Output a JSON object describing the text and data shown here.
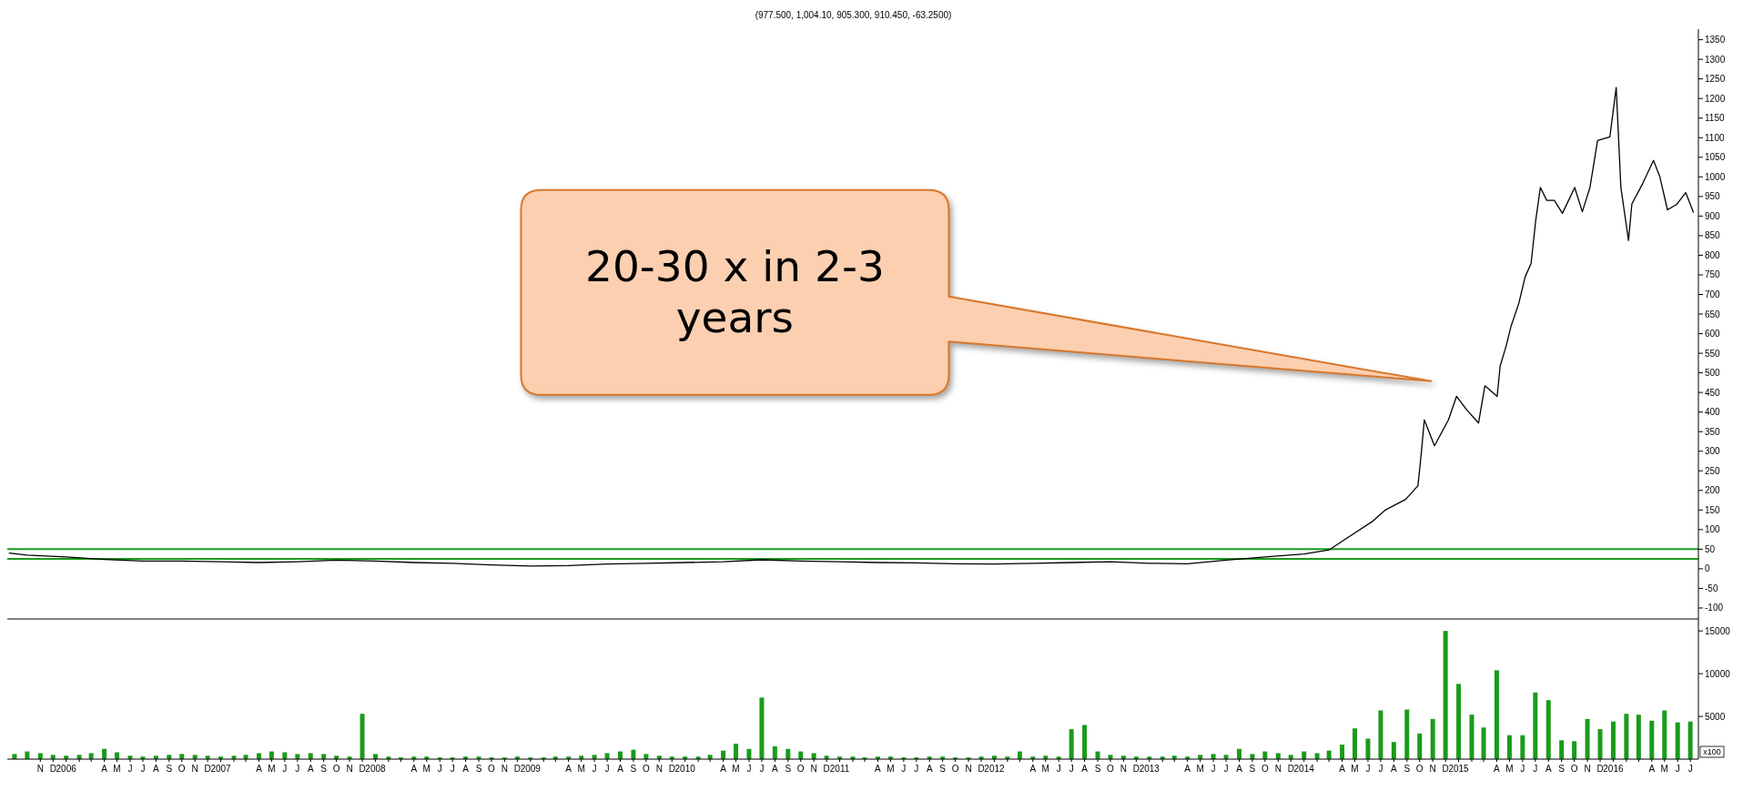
{
  "chart_data": [
    {
      "type": "line",
      "title": "(977.500, 1,004.10, 905.300, 910.450, -63.2500)",
      "tick_labels": "y",
      "xlim": [
        "2005-08-15",
        "2016-07-20"
      ],
      "ylim": [
        -128,
        1377
      ],
      "yticks": [
        -100,
        -50,
        0,
        50,
        100,
        150,
        200,
        250,
        300,
        350,
        400,
        450,
        500,
        550,
        600,
        650,
        700,
        750,
        800,
        850,
        900,
        950,
        1000,
        1050,
        1100,
        1150,
        1200,
        1250,
        1300,
        1350
      ],
      "ref_lines": [
        {
          "axis": "y",
          "value": 50,
          "color": "#1a9b1a"
        },
        {
          "axis": "y",
          "value": 25,
          "color": "#1a9b1a"
        }
      ],
      "annotations": [
        "20-30 x in 2-3 years"
      ],
      "series": [
        {
          "color": "#000000",
          "x": [
            "2005-08-20",
            "2005-10",
            "2006-01",
            "2006-04",
            "2006-07",
            "2006-10",
            "2007-01",
            "2007-04",
            "2007-07",
            "2007-10",
            "2008-01",
            "2008-04",
            "2008-07",
            "2008-10",
            "2009-01",
            "2009-04",
            "2009-07",
            "2009-10",
            "2010-01",
            "2010-04",
            "2010-07",
            "2010-10",
            "2011-01",
            "2011-04",
            "2011-07",
            "2011-10",
            "2012-01",
            "2012-04",
            "2012-07",
            "2012-10",
            "2013-01",
            "2013-04",
            "2013-07",
            "2013-10",
            "2014-01",
            "2014-03",
            "2014-04-12",
            "2014-06-13",
            "2014-07-12",
            "2014-08-29",
            "2014-09-27",
            "2014-10-05",
            "2014-10-12",
            "2014-11-05",
            "2014-12-08",
            "2014-12-27",
            "2015-01-19",
            "2015-02-17",
            "2015-03-04",
            "2015-04-02",
            "2015-04-09",
            "2015-04-23",
            "2015-05-05",
            "2015-05-23",
            "2015-06-07",
            "2015-06-21",
            "2015-07-02",
            "2015-07-13",
            "2015-07-28",
            "2015-08-15",
            "2015-09-03",
            "2015-10-02",
            "2015-10-20",
            "2015-11-07",
            "2015-11-25",
            "2015-12-24",
            "2016-01-08",
            "2016-01-19",
            "2016-02-06",
            "2016-02-14",
            "2016-03-10",
            "2016-04-05",
            "2016-04-20",
            "2016-05-08",
            "2016-05-30",
            "2016-06-20",
            "2016-07-08"
          ],
          "values": [
            40,
            35,
            30,
            24,
            20,
            20,
            18,
            16,
            18,
            22,
            20,
            16,
            14,
            10,
            7,
            8,
            12,
            14,
            16,
            18,
            23,
            20,
            18,
            16,
            15,
            13,
            12,
            14,
            16,
            18,
            14,
            13,
            22,
            30,
            38,
            48,
            78,
            122,
            150,
            177,
            212,
            296,
            380,
            314,
            380,
            440,
            407,
            372,
            467,
            440,
            517,
            568,
            620,
            677,
            745,
            779,
            889,
            973,
            940,
            940,
            907,
            973,
            911,
            973,
            1093,
            1102,
            1228,
            973,
            838,
            931,
            982,
            1042,
            1000,
            916,
            930,
            960,
            910
          ]
        }
      ]
    },
    {
      "type": "bar",
      "ylabel": "x100",
      "xlim": [
        "2005-08-15",
        "2016-07-20"
      ],
      "ylim": [
        0,
        16400
      ],
      "yticks": [
        5000,
        10000,
        15000
      ],
      "xticks": [
        {
          "value": "2005-11",
          "label": "N"
        },
        {
          "value": "2005-12",
          "label": "D"
        },
        {
          "value": "2006-01",
          "label": "2006"
        },
        {
          "value": "2006-02",
          "label": null
        },
        {
          "value": "2006-03",
          "label": null
        },
        {
          "value": "2006-04",
          "label": "A"
        },
        {
          "value": "2006-05",
          "label": "M"
        },
        {
          "value": "2006-06",
          "label": "J"
        },
        {
          "value": "2006-07",
          "label": "J"
        },
        {
          "value": "2006-08",
          "label": "A"
        },
        {
          "value": "2006-09",
          "label": "S"
        },
        {
          "value": "2006-10",
          "label": "O"
        },
        {
          "value": "2006-11",
          "label": "N"
        },
        {
          "value": "2006-12",
          "label": "D"
        },
        {
          "value": "2007-01",
          "label": "2007"
        },
        {
          "value": "2007-02",
          "label": null
        },
        {
          "value": "2007-03",
          "label": null
        },
        {
          "value": "2007-04",
          "label": "A"
        },
        {
          "value": "2007-05",
          "label": "M"
        },
        {
          "value": "2007-06",
          "label": "J"
        },
        {
          "value": "2007-07",
          "label": "J"
        },
        {
          "value": "2007-08",
          "label": "A"
        },
        {
          "value": "2007-09",
          "label": "S"
        },
        {
          "value": "2007-10",
          "label": "O"
        },
        {
          "value": "2007-11",
          "label": "N"
        },
        {
          "value": "2007-12",
          "label": "D"
        },
        {
          "value": "2008-01",
          "label": "2008"
        },
        {
          "value": "2008-02",
          "label": null
        },
        {
          "value": "2008-03",
          "label": null
        },
        {
          "value": "2008-04",
          "label": "A"
        },
        {
          "value": "2008-05",
          "label": "M"
        },
        {
          "value": "2008-06",
          "label": "J"
        },
        {
          "value": "2008-07",
          "label": "J"
        },
        {
          "value": "2008-08",
          "label": "A"
        },
        {
          "value": "2008-09",
          "label": "S"
        },
        {
          "value": "2008-10",
          "label": "O"
        },
        {
          "value": "2008-11",
          "label": "N"
        },
        {
          "value": "2008-12",
          "label": "D"
        },
        {
          "value": "2009-01",
          "label": "2009"
        },
        {
          "value": "2009-02",
          "label": null
        },
        {
          "value": "2009-03",
          "label": null
        },
        {
          "value": "2009-04",
          "label": "A"
        },
        {
          "value": "2009-05",
          "label": "M"
        },
        {
          "value": "2009-06",
          "label": "J"
        },
        {
          "value": "2009-07",
          "label": "J"
        },
        {
          "value": "2009-08",
          "label": "A"
        },
        {
          "value": "2009-09",
          "label": "S"
        },
        {
          "value": "2009-10",
          "label": "O"
        },
        {
          "value": "2009-11",
          "label": "N"
        },
        {
          "value": "2009-12",
          "label": "D"
        },
        {
          "value": "2010-01",
          "label": "2010"
        },
        {
          "value": "2010-02",
          "label": null
        },
        {
          "value": "2010-03",
          "label": null
        },
        {
          "value": "2010-04",
          "label": "A"
        },
        {
          "value": "2010-05",
          "label": "M"
        },
        {
          "value": "2010-06",
          "label": "J"
        },
        {
          "value": "2010-07",
          "label": "J"
        },
        {
          "value": "2010-08",
          "label": "A"
        },
        {
          "value": "2010-09",
          "label": "S"
        },
        {
          "value": "2010-10",
          "label": "O"
        },
        {
          "value": "2010-11",
          "label": "N"
        },
        {
          "value": "2010-12",
          "label": "D"
        },
        {
          "value": "2011-01",
          "label": "2011"
        },
        {
          "value": "2011-02",
          "label": null
        },
        {
          "value": "2011-03",
          "label": null
        },
        {
          "value": "2011-04",
          "label": "A"
        },
        {
          "value": "2011-05",
          "label": "M"
        },
        {
          "value": "2011-06",
          "label": "J"
        },
        {
          "value": "2011-07",
          "label": "J"
        },
        {
          "value": "2011-08",
          "label": "A"
        },
        {
          "value": "2011-09",
          "label": "S"
        },
        {
          "value": "2011-10",
          "label": "O"
        },
        {
          "value": "2011-11",
          "label": "N"
        },
        {
          "value": "2011-12",
          "label": "D"
        },
        {
          "value": "2012-01",
          "label": "2012"
        },
        {
          "value": "2012-02",
          "label": null
        },
        {
          "value": "2012-03",
          "label": null
        },
        {
          "value": "2012-04",
          "label": "A"
        },
        {
          "value": "2012-05",
          "label": "M"
        },
        {
          "value": "2012-06",
          "label": "J"
        },
        {
          "value": "2012-07",
          "label": "J"
        },
        {
          "value": "2012-08",
          "label": "A"
        },
        {
          "value": "2012-09",
          "label": "S"
        },
        {
          "value": "2012-10",
          "label": "O"
        },
        {
          "value": "2012-11",
          "label": "N"
        },
        {
          "value": "2012-12",
          "label": "D"
        },
        {
          "value": "2013-01",
          "label": "2013"
        },
        {
          "value": "2013-02",
          "label": null
        },
        {
          "value": "2013-03",
          "label": null
        },
        {
          "value": "2013-04",
          "label": "A"
        },
        {
          "value": "2013-05",
          "label": "M"
        },
        {
          "value": "2013-06",
          "label": "J"
        },
        {
          "value": "2013-07",
          "label": "J"
        },
        {
          "value": "2013-08",
          "label": "A"
        },
        {
          "value": "2013-09",
          "label": "S"
        },
        {
          "value": "2013-10",
          "label": "O"
        },
        {
          "value": "2013-11",
          "label": "N"
        },
        {
          "value": "2013-12",
          "label": "D"
        },
        {
          "value": "2014-01",
          "label": "2014"
        },
        {
          "value": "2014-02",
          "label": null
        },
        {
          "value": "2014-03",
          "label": null
        },
        {
          "value": "2014-04",
          "label": "A"
        },
        {
          "value": "2014-05",
          "label": "M"
        },
        {
          "value": "2014-06",
          "label": "J"
        },
        {
          "value": "2014-07",
          "label": "J"
        },
        {
          "value": "2014-08",
          "label": "A"
        },
        {
          "value": "2014-09",
          "label": "S"
        },
        {
          "value": "2014-10",
          "label": "O"
        },
        {
          "value": "2014-11",
          "label": "N"
        },
        {
          "value": "2014-12",
          "label": "D"
        },
        {
          "value": "2015-01",
          "label": "2015"
        },
        {
          "value": "2015-02",
          "label": null
        },
        {
          "value": "2015-03",
          "label": null
        },
        {
          "value": "2015-04",
          "label": "A"
        },
        {
          "value": "2015-05",
          "label": "M"
        },
        {
          "value": "2015-06",
          "label": "J"
        },
        {
          "value": "2015-07",
          "label": "J"
        },
        {
          "value": "2015-08",
          "label": "A"
        },
        {
          "value": "2015-09",
          "label": "S"
        },
        {
          "value": "2015-10",
          "label": "O"
        },
        {
          "value": "2015-11",
          "label": "N"
        },
        {
          "value": "2015-12",
          "label": "D"
        },
        {
          "value": "2016-01",
          "label": "2016"
        },
        {
          "value": "2016-02",
          "label": null
        },
        {
          "value": "2016-03",
          "label": null
        },
        {
          "value": "2016-04",
          "label": "A"
        },
        {
          "value": "2016-05",
          "label": "M"
        },
        {
          "value": "2016-06",
          "label": "J"
        },
        {
          "value": "2016-07",
          "label": "J"
        }
      ],
      "series": [
        {
          "color": "#1a9b1a",
          "x": [
            "2005-09",
            "2005-10",
            "2005-11",
            "2005-12",
            "2006-01",
            "2006-02",
            "2006-03",
            "2006-04",
            "2006-05",
            "2006-06",
            "2006-07",
            "2006-08",
            "2006-09",
            "2006-10",
            "2006-11",
            "2006-12",
            "2007-01",
            "2007-02",
            "2007-03",
            "2007-04",
            "2007-05",
            "2007-06",
            "2007-07",
            "2007-08",
            "2007-09",
            "2007-10",
            "2007-11",
            "2007-12",
            "2008-01",
            "2008-02",
            "2008-03",
            "2008-04",
            "2008-05",
            "2008-06",
            "2008-07",
            "2008-08",
            "2008-09",
            "2008-10",
            "2008-11",
            "2008-12",
            "2009-01",
            "2009-02",
            "2009-03",
            "2009-04",
            "2009-05",
            "2009-06",
            "2009-07",
            "2009-08",
            "2009-09",
            "2009-10",
            "2009-11",
            "2009-12",
            "2010-01",
            "2010-02",
            "2010-03",
            "2010-04",
            "2010-05",
            "2010-06",
            "2010-07",
            "2010-08",
            "2010-09",
            "2010-10",
            "2010-11",
            "2010-12",
            "2011-01",
            "2011-02",
            "2011-03",
            "2011-04",
            "2011-05",
            "2011-06",
            "2011-07",
            "2011-08",
            "2011-09",
            "2011-10",
            "2011-11",
            "2011-12",
            "2012-01",
            "2012-02",
            "2012-03",
            "2012-04",
            "2012-05",
            "2012-06",
            "2012-07",
            "2012-08",
            "2012-09",
            "2012-10",
            "2012-11",
            "2012-12",
            "2013-01",
            "2013-02",
            "2013-03",
            "2013-04",
            "2013-05",
            "2013-06",
            "2013-07",
            "2013-08",
            "2013-09",
            "2013-10",
            "2013-11",
            "2013-12",
            "2014-01",
            "2014-02",
            "2014-03",
            "2014-04",
            "2014-05",
            "2014-06",
            "2014-07",
            "2014-08",
            "2014-09",
            "2014-10",
            "2014-11",
            "2014-12",
            "2015-01",
            "2015-02",
            "2015-03",
            "2015-04",
            "2015-05",
            "2015-06",
            "2015-07",
            "2015-08",
            "2015-09",
            "2015-10",
            "2015-11",
            "2015-12",
            "2016-01",
            "2016-02",
            "2016-03",
            "2016-04",
            "2016-05",
            "2016-06",
            "2016-07"
          ],
          "values": [
            600,
            900,
            700,
            500,
            400,
            500,
            700,
            1200,
            800,
            400,
            300,
            400,
            500,
            600,
            500,
            400,
            300,
            400,
            500,
            700,
            900,
            800,
            600,
            700,
            600,
            400,
            300,
            5300,
            600,
            300,
            200,
            300,
            300,
            200,
            200,
            300,
            300,
            200,
            200,
            300,
            200,
            200,
            300,
            300,
            400,
            500,
            700,
            900,
            1100,
            600,
            400,
            300,
            300,
            300,
            500,
            1000,
            1800,
            1200,
            7200,
            1500,
            1200,
            900,
            700,
            400,
            300,
            300,
            200,
            300,
            300,
            200,
            200,
            300,
            300,
            200,
            200,
            300,
            400,
            300,
            900,
            300,
            400,
            300,
            3500,
            4000,
            900,
            500,
            400,
            300,
            300,
            300,
            400,
            300,
            500,
            600,
            500,
            1200,
            600,
            900,
            700,
            500,
            900,
            700,
            1000,
            1700,
            3600,
            2400,
            5700,
            2000,
            5800,
            3000,
            4700,
            15000,
            8800,
            5200,
            3700,
            10400,
            2800,
            2800,
            7800,
            6900,
            2200,
            2100,
            4700,
            3500,
            4400,
            5300,
            5200,
            4500,
            5700,
            4300,
            4400
          ]
        }
      ]
    }
  ]
}
